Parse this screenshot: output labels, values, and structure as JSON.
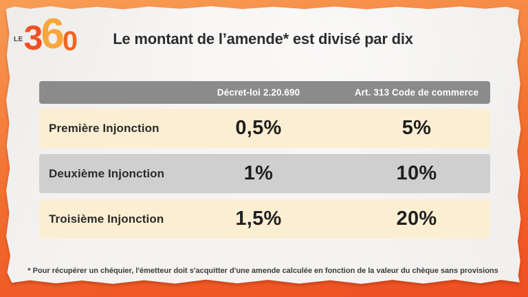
{
  "logo": {
    "prefix": "LE",
    "digits": [
      "3",
      "6",
      "0"
    ],
    "digit_colors": [
      "#f05123",
      "#f9a63e",
      "#f2661f"
    ]
  },
  "title": "Le montant de l’amende* est divisé par dix",
  "table": {
    "columns": [
      "",
      "Décret-loi 2.20.690",
      "Art. 313 Code de commerce"
    ],
    "rows": [
      {
        "label": "Première Injonction",
        "decret": "0,5%",
        "code": "5%"
      },
      {
        "label": "Deuxième Injonction",
        "decret": "1%",
        "code": "10%"
      },
      {
        "label": "Troisième Injonction",
        "decret": "1,5%",
        "code": "20%"
      }
    ]
  },
  "footnote": "* Pour récupérer un chéquier, l'émetteur doit s'acquitter d'une amende calculée en fonction de la valeur du chèque sans provisions",
  "colors": {
    "border_orange_top": "#f89d55",
    "border_orange_bottom": "#ee4d22",
    "paper": "#f5f3f1",
    "header_gray": "#8b8b8b",
    "row_cream": "#fbeed2",
    "row_gray": "#cfcfcf",
    "text_dark": "#2d2d2d"
  },
  "chart_data": {
    "type": "table",
    "title": "Le montant de l’amende* est divisé par dix",
    "columns": [
      "",
      "Décret-loi 2.20.690",
      "Art. 313 Code de commerce"
    ],
    "rows": [
      [
        "Première Injonction",
        "0,5%",
        "5%"
      ],
      [
        "Deuxième Injonction",
        "1%",
        "10%"
      ],
      [
        "Troisième Injonction",
        "1,5%",
        "20%"
      ]
    ],
    "series": [
      {
        "name": "Décret-loi 2.20.690",
        "values_percent": [
          0.5,
          1,
          1.5
        ]
      },
      {
        "name": "Art. 313 Code de commerce",
        "values_percent": [
          5,
          10,
          20
        ]
      }
    ],
    "categories": [
      "Première Injonction",
      "Deuxième Injonction",
      "Troisième Injonction"
    ],
    "footnote": "* Pour récupérer un chéquier, l'émetteur doit s'acquitter d'une amende calculée en fonction de la valeur du chèque sans provisions"
  }
}
